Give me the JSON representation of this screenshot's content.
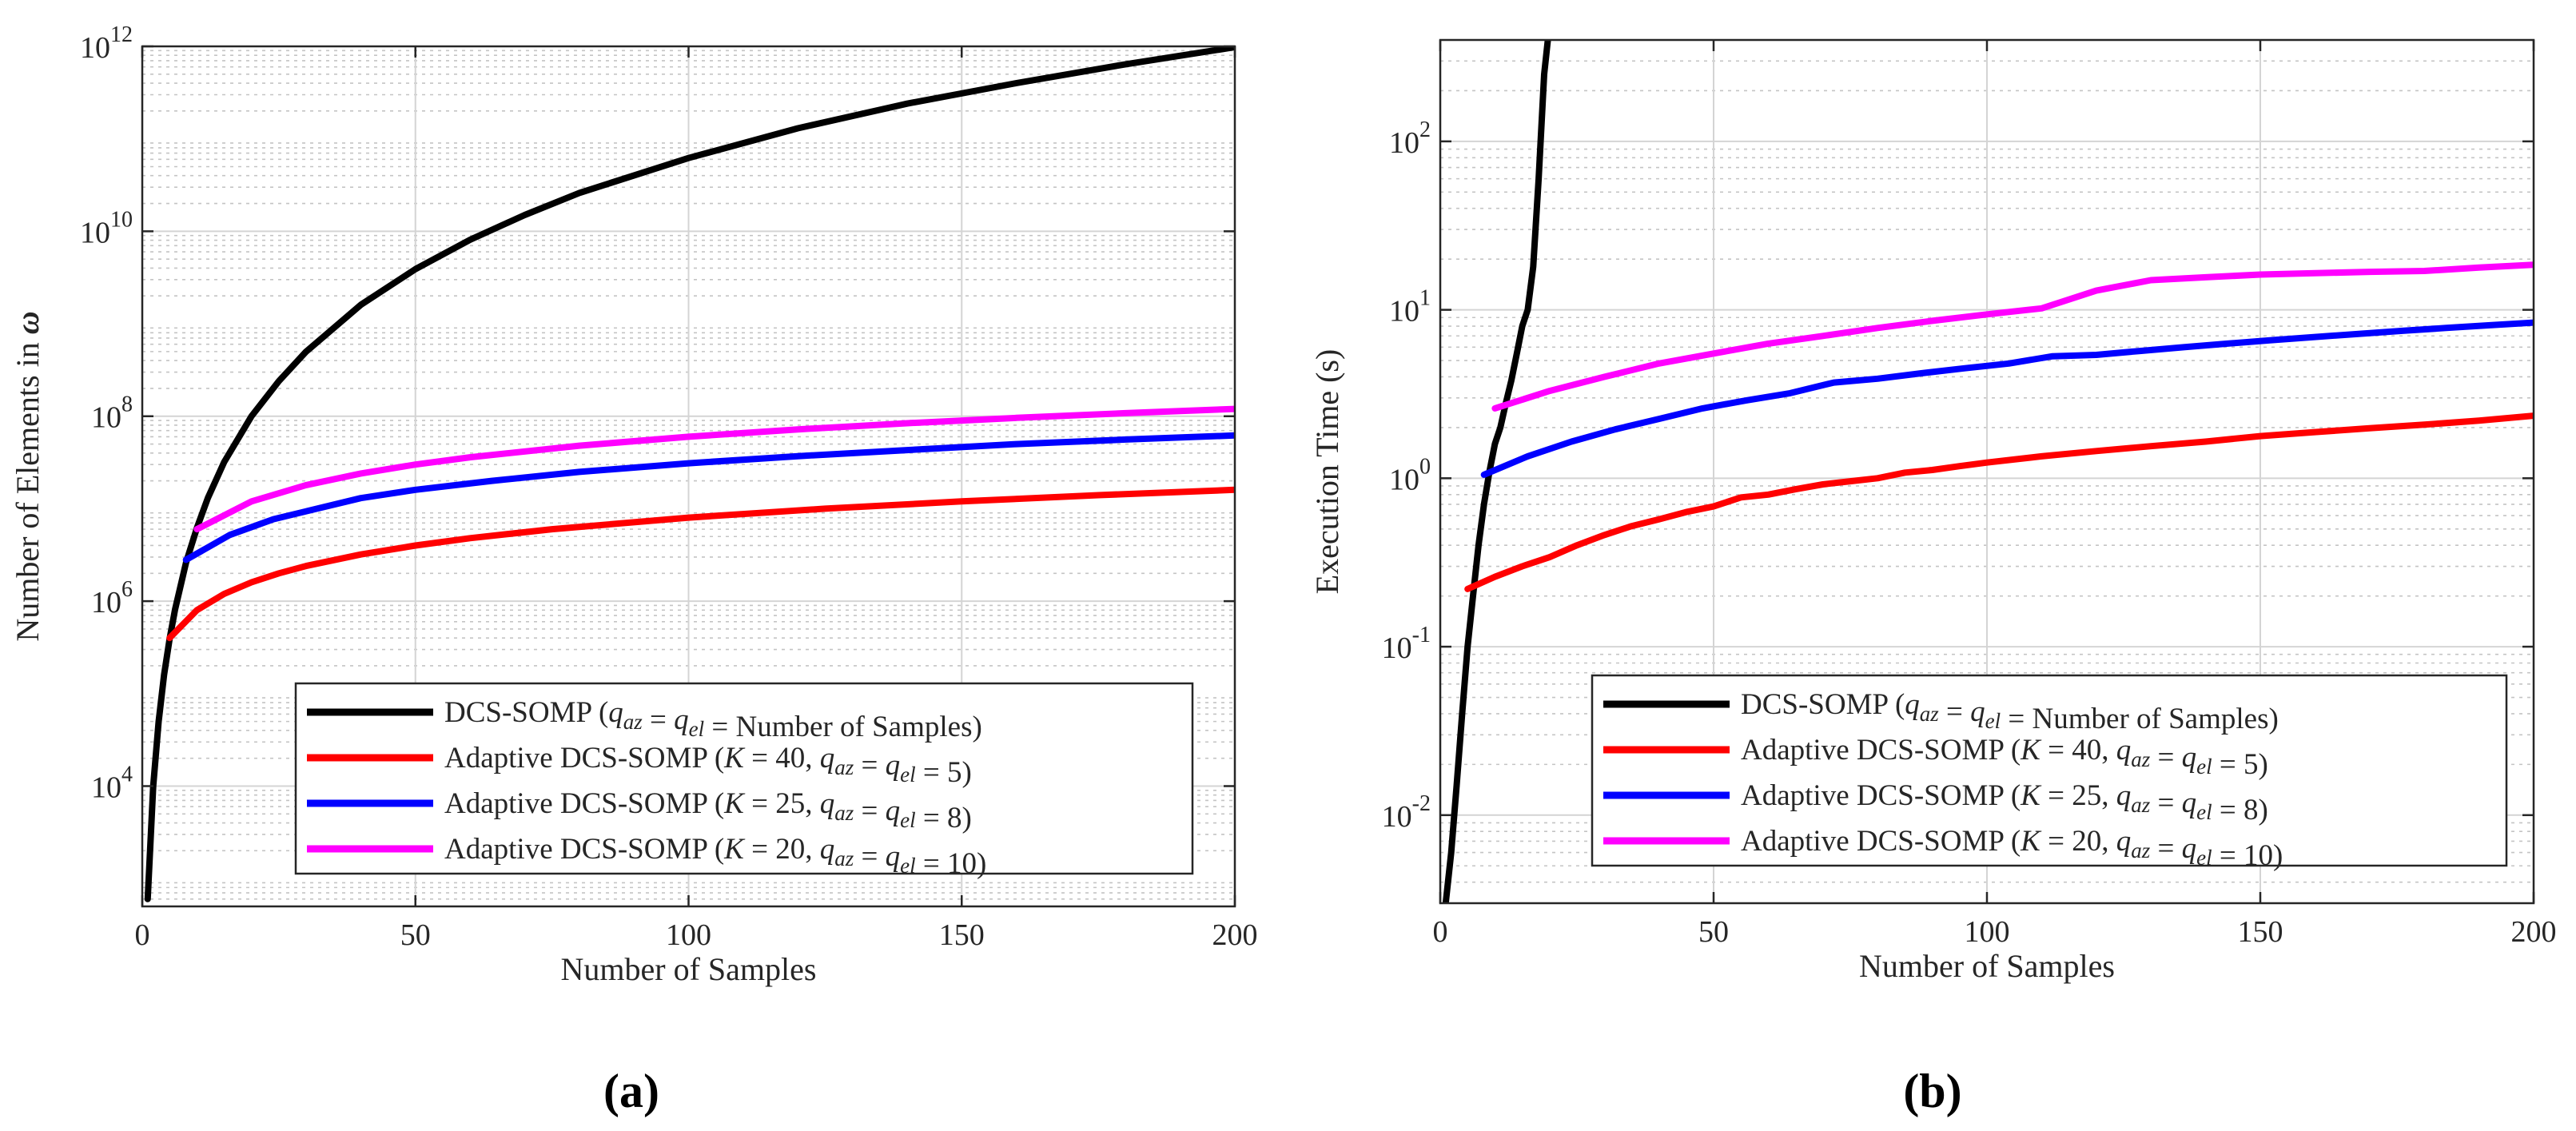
{
  "figure": {
    "panel_labels": [
      "(a)",
      "(b)"
    ]
  },
  "chart_data": [
    {
      "type": "line",
      "panel": "(a)",
      "xlabel": "Number of Samples",
      "ylabel": "Number of Elements in ω",
      "xlim": [
        0,
        200
      ],
      "ylim": [
        500.0,
        1000000000000.0
      ],
      "yscale": "log",
      "xticks": [
        0,
        50,
        100,
        150,
        200
      ],
      "yticks": [
        {
          "value": 10000.0,
          "base": "10",
          "exp": "4"
        },
        {
          "value": 1000000.0,
          "base": "10",
          "exp": "6"
        },
        {
          "value": 100000000.0,
          "base": "10",
          "exp": "8"
        },
        {
          "value": 10000000000.0,
          "base": "10",
          "exp": "10"
        },
        {
          "value": 1000000000000.0,
          "base": "10",
          "exp": "12"
        }
      ],
      "grid": true,
      "legend_position": "lower-right",
      "series": [
        {
          "name": "DCS-SOMP (q_az = q_el = Number of Samples)",
          "color": "#000000",
          "x": [
            1,
            2,
            3,
            4,
            5,
            6,
            8,
            10,
            12,
            15,
            20,
            25,
            30,
            40,
            50,
            60,
            70,
            80,
            100,
            120,
            140,
            160,
            180,
            200
          ],
          "y": [
            600.0,
            10000.0,
            50000.0,
            160000.0,
            390000.0,
            810000.0,
            2600000.0,
            6200000.0,
            13000000.0,
            32000000.0,
            100000000.0,
            240000000.0,
            500000000.0,
            1600000000.0,
            3900000000.0,
            8100000000.0,
            15000000000.0,
            26000000000.0,
            62000000000.0,
            130000000000.0,
            240000000000.0,
            400000000000.0,
            640000000000.0,
            980000000000.0
          ]
        },
        {
          "name": "Adaptive DCS-SOMP (K = 40, q_az = q_el = 5)",
          "color": "#ff0000",
          "x": [
            5,
            10,
            15,
            20,
            25,
            30,
            40,
            50,
            60,
            75,
            100,
            125,
            150,
            175,
            200
          ],
          "y": [
            400000.0,
            800000.0,
            1200000.0,
            1600000.0,
            2000000.0,
            2400000.0,
            3200000.0,
            4000000.0,
            4800000.0,
            6000000.0,
            8000000.0,
            10000000.0,
            12000000.0,
            14000000.0,
            16000000.0
          ]
        },
        {
          "name": "Adaptive DCS-SOMP (K = 25, q_az = q_el = 8)",
          "color": "#0000ff",
          "x": [
            8,
            16,
            24,
            32,
            40,
            50,
            64,
            80,
            100,
            120,
            140,
            160,
            180,
            200
          ],
          "y": [
            2800000.0,
            5200000.0,
            7700000.0,
            10000000.0,
            13000000.0,
            16000000.0,
            20000000.0,
            25000000.0,
            31000000.0,
            37000000.0,
            43000000.0,
            50000000.0,
            56000000.0,
            62000000.0
          ]
        },
        {
          "name": "Adaptive DCS-SOMP (K = 20, q_az = q_el = 10)",
          "color": "#ff00ff",
          "x": [
            10,
            20,
            30,
            40,
            50,
            60,
            80,
            100,
            120,
            140,
            160,
            180,
            200
          ],
          "y": [
            6000000.0,
            12000000.0,
            18000000.0,
            24000000.0,
            30000000.0,
            36000000.0,
            48000000.0,
            60000000.0,
            72000000.0,
            84000000.0,
            96000000.0,
            108000000.0,
            120000000.0
          ]
        }
      ]
    },
    {
      "type": "line",
      "panel": "(b)",
      "xlabel": "Number of Samples",
      "ylabel": "Execution Time (s)",
      "xlim": [
        0,
        200
      ],
      "ylim": [
        0.003,
        400
      ],
      "yscale": "log",
      "xticks": [
        0,
        50,
        100,
        150,
        200
      ],
      "yticks": [
        {
          "value": 0.01,
          "base": "10",
          "exp": "-2"
        },
        {
          "value": 0.1,
          "base": "10",
          "exp": "-1"
        },
        {
          "value": 1,
          "base": "10",
          "exp": "0"
        },
        {
          "value": 10,
          "base": "10",
          "exp": "1"
        },
        {
          "value": 100,
          "base": "10",
          "exp": "2"
        }
      ],
      "grid": true,
      "legend_position": "lower-right",
      "series": [
        {
          "name": "DCS-SOMP (q_az = q_el = Number of Samples)",
          "color": "#000000",
          "x": [
            1,
            2,
            3,
            4,
            5,
            6,
            7,
            8,
            9,
            10,
            11,
            12,
            13,
            14,
            15,
            16,
            17,
            18,
            19,
            20
          ],
          "y": [
            0.003,
            0.006,
            0.015,
            0.04,
            0.1,
            0.2,
            0.4,
            0.7,
            1.1,
            1.6,
            2,
            2.8,
            3.8,
            5.5,
            8,
            10,
            18,
            60,
            250,
            500
          ]
        },
        {
          "name": "Adaptive DCS-SOMP (K = 40, q_az = q_el = 5)",
          "color": "#ff0000",
          "x": [
            5,
            10,
            15,
            20,
            25,
            30,
            35,
            40,
            45,
            50,
            55,
            60,
            65,
            70,
            75,
            80,
            85,
            90,
            95,
            100,
            110,
            120,
            130,
            140,
            150,
            160,
            170,
            180,
            190,
            200
          ],
          "y": [
            0.22,
            0.26,
            0.3,
            0.34,
            0.4,
            0.46,
            0.52,
            0.57,
            0.63,
            0.68,
            0.77,
            0.8,
            0.86,
            0.92,
            0.96,
            1.0,
            1.08,
            1.12,
            1.18,
            1.24,
            1.35,
            1.45,
            1.55,
            1.65,
            1.78,
            1.88,
            1.98,
            2.08,
            2.2,
            2.35
          ]
        },
        {
          "name": "Adaptive DCS-SOMP (K = 25, q_az = q_el = 8)",
          "color": "#0000ff",
          "x": [
            8,
            16,
            24,
            32,
            40,
            48,
            56,
            64,
            72,
            80,
            88,
            96,
            104,
            112,
            120,
            128,
            136,
            144,
            152,
            160,
            168,
            176,
            184,
            192,
            200
          ],
          "y": [
            1.05,
            1.35,
            1.65,
            1.95,
            2.25,
            2.6,
            2.9,
            3.2,
            3.7,
            3.9,
            4.2,
            4.5,
            4.8,
            5.3,
            5.4,
            5.7,
            6.0,
            6.3,
            6.6,
            6.9,
            7.2,
            7.5,
            7.8,
            8.1,
            8.4
          ]
        },
        {
          "name": "Adaptive DCS-SOMP (K = 20, q_az = q_el = 10)",
          "color": "#ff00ff",
          "x": [
            10,
            20,
            30,
            40,
            50,
            60,
            70,
            80,
            90,
            100,
            110,
            120,
            130,
            140,
            150,
            160,
            170,
            180,
            190,
            200
          ],
          "y": [
            2.6,
            3.3,
            4.0,
            4.8,
            5.5,
            6.3,
            7.0,
            7.8,
            8.6,
            9.4,
            10.2,
            13.0,
            15.0,
            15.6,
            16.2,
            16.5,
            16.8,
            17.0,
            17.8,
            18.5
          ]
        }
      ]
    }
  ]
}
